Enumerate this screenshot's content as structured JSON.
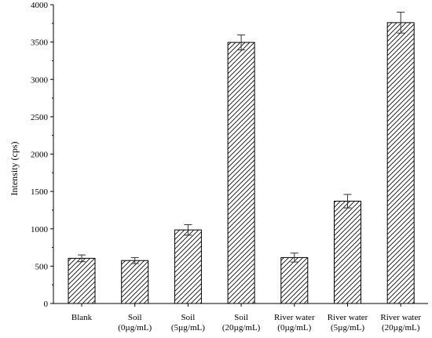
{
  "chart_data": {
    "type": "bar",
    "categories": [
      [
        "Blank"
      ],
      [
        "Soil",
        "(0µg/mL)"
      ],
      [
        "Soil",
        "(5µg/mL)"
      ],
      [
        "Soil",
        "(20µg/mL)"
      ],
      [
        "River water",
        "(0µg/mL)"
      ],
      [
        "River water",
        "(5µg/mL)"
      ],
      [
        "River water",
        "(20µg/mL)"
      ]
    ],
    "values": [
      605,
      575,
      985,
      3495,
      615,
      1370,
      3760
    ],
    "errors": [
      45,
      40,
      70,
      100,
      60,
      90,
      140
    ],
    "ylabel": "Intensity (cps)",
    "xlabel": "",
    "ylim": [
      0,
      4000
    ],
    "yticks": [
      0,
      500,
      1000,
      1500,
      2000,
      2500,
      3000,
      3500,
      4000
    ],
    "fill": "diagonal-hatch",
    "bar_color": "#000000",
    "grid": false
  }
}
